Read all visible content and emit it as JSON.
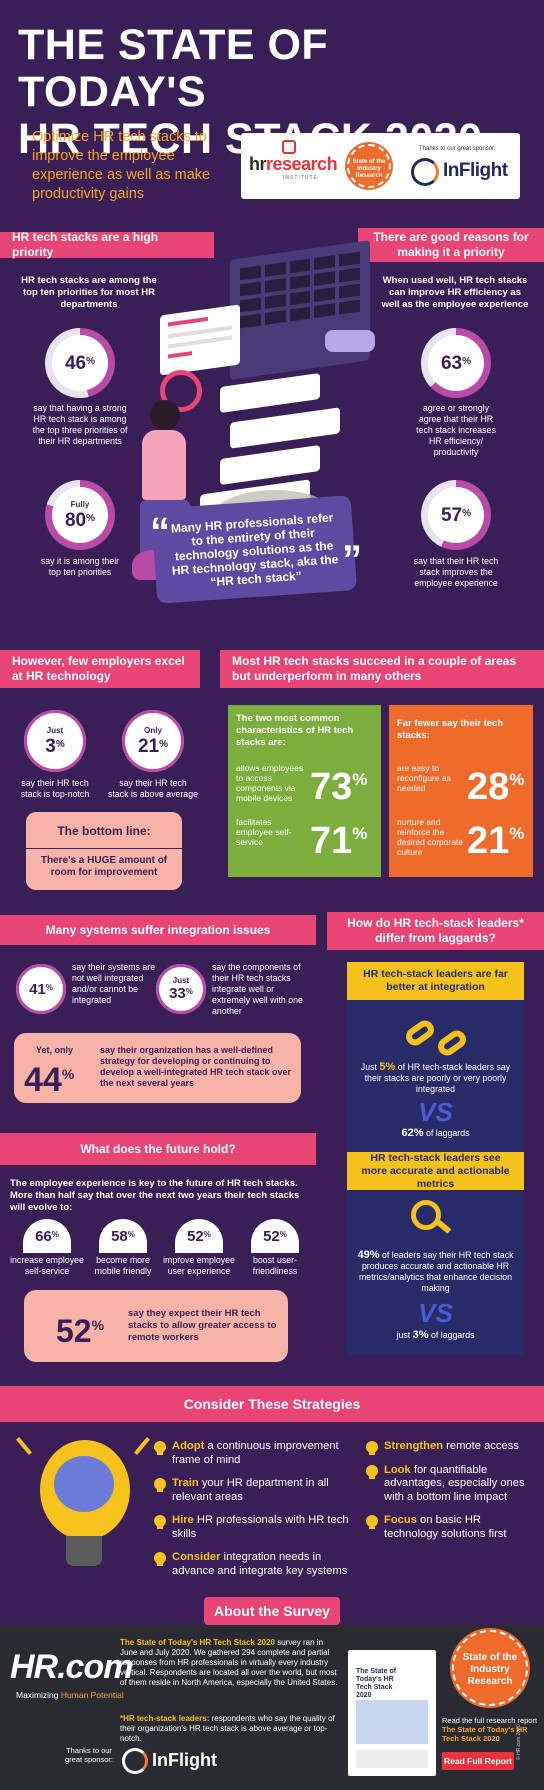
{
  "title": {
    "line1": "THE STATE OF TODAY'S",
    "line2": "HR TECH STACK 2020"
  },
  "intro": "Optimize HR tech stacks to improve the employee experience as well as make productivity gains",
  "sponsor_box": {
    "hrr_logo_a": "hr",
    "hrr_logo_b": "research",
    "hrr_sub": "INSTITUTE",
    "badge": "State of the Industry Research",
    "thanks": "Thanks to our great sponsor:",
    "inflight": "InFlight"
  },
  "left_priority": {
    "header": "HR tech stacks are a high priority",
    "lead": "HR tech stacks are among the top ten priorities for most HR departments",
    "stat1": {
      "value": "46",
      "unit": "%",
      "text": "say that having a strong HR tech stack is among the top three priorities of their HR departments"
    },
    "stat2": {
      "pre": "Fully",
      "value": "80",
      "unit": "%",
      "text": "say it is among their top ten priorities"
    }
  },
  "right_priority": {
    "header": "There are good reasons for making it a priority",
    "lead": "When used well, HR tech stacks can improve HR efficiency as well as the employee experience",
    "stat1": {
      "value": "63",
      "unit": "%",
      "text": "agree or strongly agree that their HR tech stack increases HR efficiency/ productivity"
    },
    "stat2": {
      "value": "57",
      "unit": "%",
      "text": "say that their HR tech stack improves the employee experience"
    }
  },
  "quote": "Many HR professionals refer to the entirety of their technology solutions as the HR technology stack, aka the “HR tech stack”",
  "few_excel": {
    "header": "However, few employers excel at HR technology",
    "stat1": {
      "pre": "Just",
      "value": "3",
      "unit": "%",
      "text": "say their HR tech stack is top-notch"
    },
    "stat2": {
      "pre": "Only",
      "value": "21",
      "unit": "%",
      "text": "say their HR tech stack is above average"
    },
    "bottom_line_title": "The bottom line:",
    "bottom_line_text": "There's a HUGE amount of room for improvement"
  },
  "succeed": {
    "header": "Most HR tech stacks succeed in a couple of areas but underperform in many others",
    "green_title": "The two most common characteristics of HR tech stacks are:",
    "green1": {
      "text": "allows employees to access components via mobile devices",
      "value": "73",
      "unit": "%"
    },
    "green2": {
      "text": "facilitates employee self-service",
      "value": "71",
      "unit": "%"
    },
    "orange_title": "Far fewer say their tech stacks:",
    "orange1": {
      "text": "are easy to reconfigure as needed",
      "value": "28",
      "unit": "%"
    },
    "orange2": {
      "text": "nurture and reinforce the desired corporate culture",
      "value": "21",
      "unit": "%"
    }
  },
  "integration": {
    "header": "Many systems suffer integration issues",
    "stat1": {
      "value": "41",
      "unit": "%",
      "text": "say their systems are not well integrated and/or cannot be integrated"
    },
    "stat2": {
      "pre": "Just",
      "value": "33",
      "unit": "%",
      "text": "say the components of their HR tech stacks integrate well or extremely well with one another"
    },
    "stat3": {
      "pre": "Yet, only",
      "value": "44",
      "unit": "%",
      "text": "say their organization has a well-defined strategy for developing or continuing to develop a well-integrated HR tech stack over the next several years"
    }
  },
  "leaders": {
    "header": "How do HR tech-stack leaders* differ from laggards?",
    "box1_title": "HR tech-stack leaders are far better at integration",
    "box1_text_a": "Just ",
    "box1_text_b": "5%",
    "box1_text_c": " of HR tech-stack leaders say their stacks are poorly or very poorly integrated",
    "vs": "VS",
    "box1_laggards_a": "62%",
    "box1_laggards_b": " of laggards",
    "box2_title": "HR tech-stack leaders see more accurate and actionable metrics",
    "box2_text_a": "49%",
    "box2_text_b": " of leaders say their HR tech stack produces accurate and actionable HR metrics/analytics that enhance decision making",
    "box2_laggards_a": "just ",
    "box2_laggards_b": "3%",
    "box2_laggards_c": " of laggards"
  },
  "future": {
    "header": "What does the future hold?",
    "lead": "The employee experience is key to the future of HR tech stacks. More than half say that over the next two years their tech stacks will evolve to:",
    "items": [
      {
        "value": "66",
        "unit": "%",
        "text": "increase employee self-service"
      },
      {
        "value": "58",
        "unit": "%",
        "text": "become more mobile friendly"
      },
      {
        "value": "52",
        "unit": "%",
        "text": "improve employee user experience"
      },
      {
        "value": "52",
        "unit": "%",
        "text": "boost user-friendliness"
      }
    ],
    "remote": {
      "value": "52",
      "unit": "%",
      "text": "say they expect their HR tech stacks to allow greater access to remote workers"
    }
  },
  "strategies": {
    "header": "Consider These Strategies",
    "left": [
      {
        "hl": "Adopt",
        "text": " a continuous improvement frame of mind"
      },
      {
        "hl": "Train",
        "text": " your HR department in all relevant areas"
      },
      {
        "hl": "Hire",
        "text": " HR professionals with HR tech skills"
      },
      {
        "hl": "Consider",
        "text": " integration needs in advance and integrate key systems"
      }
    ],
    "right": [
      {
        "hl": "Strengthen",
        "text": " remote access"
      },
      {
        "hl": "Look",
        "text": " for quantifiable advantages, especially ones with a bottom line impact"
      },
      {
        "hl": "Focus",
        "text": " on basic HR technology solutions first"
      }
    ]
  },
  "about": {
    "header": "About the Survey",
    "hrcom": "HR.com",
    "tagline_a": "Maximizing ",
    "tagline_b": "Human Potential",
    "survey_a": "The State of Today's HR Tech Stack 2020",
    "survey_b": " survey ran in June and July 2020. We gathered 294 complete and partial responses from HR professionals in virtually every industry vertical. Respondents are located all over the world, but most of them reside in North America, especially the United States.",
    "note_a": "*HR tech-stack leaders:",
    "note_b": " respondents who say the quality of their organization's HR tech stack is above average or top-notch.",
    "thanks": "Thanks to our great sponsor:",
    "inflight": "InFlight",
    "report_cover": "The State of Today's HR Tech Stack 2020",
    "badge": "State of the Industry Research",
    "read_a": "Read the full research report",
    "read_b": "The State of Today's HR Tech Stack 2020",
    "read_button": "Read Full Report",
    "copyright": "© HR.com 2020"
  }
}
